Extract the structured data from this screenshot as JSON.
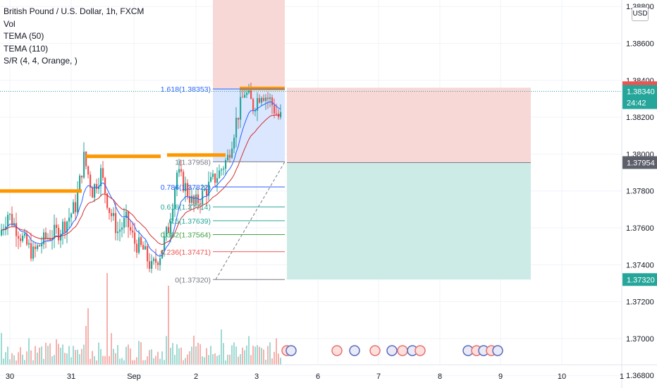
{
  "legend": {
    "symbol": "British Pound / U.S. Dollar, 1h, FXCM",
    "indicators": [
      "Vol",
      "TEMA (50)",
      "TEMA (110)",
      "S/R (4, 4, Orange, )"
    ]
  },
  "currency": "USD",
  "colors": {
    "up": "#26a69a",
    "down": "#ef5350",
    "tema50": "#2962ff",
    "tema110": "#d32f2f",
    "sr": "#ff9800",
    "short_stop_zone": "#f8d7d7",
    "short_target_zone": "#cdebe6",
    "fib_extension_zone": "#dbe6ff",
    "price_red": "#ef5350",
    "price_green": "#26a69a",
    "price_gray": "#5d606b"
  },
  "chart_data": {
    "type": "candlestick",
    "symbol": "GBPUSD",
    "timeframe": "1h",
    "ylim": [
      1.3676,
      1.3882
    ],
    "y_ticks": [
      "1.38800",
      "1.38600",
      "1.38400",
      "1.38200",
      "1.38000",
      "1.37800",
      "1.37600",
      "1.37400",
      "1.37200",
      "1.37000",
      "1.36800"
    ],
    "x_ticks": [
      "30",
      "31",
      "Sep",
      "2",
      "3",
      "6",
      "7",
      "8",
      "9",
      "10",
      "1"
    ],
    "price_labels": [
      {
        "price": 1.3836,
        "text": "1.38360",
        "style": "red"
      },
      {
        "price": 1.3834,
        "text": "1.38340",
        "sub": "24:42",
        "style": "green"
      },
      {
        "price": 1.37954,
        "text": "1.37954",
        "style": "gray"
      },
      {
        "price": 1.3732,
        "text": "1.37320",
        "style": "green"
      }
    ],
    "fib_levels": [
      {
        "ratio": "1.618",
        "price": 1.38353,
        "label": "1.618(1.38353)"
      },
      {
        "ratio": "1",
        "price": 1.37958,
        "label": "1(1.37958)"
      },
      {
        "ratio": "0.786",
        "price": 1.37822,
        "label": "0.786(1.37822)"
      },
      {
        "ratio": "0.618",
        "price": 1.37714,
        "label": "0.618(1.37714)"
      },
      {
        "ratio": "0.5",
        "price": 1.37639,
        "label": "0.5(1.37639)"
      },
      {
        "ratio": "0.382",
        "price": 1.37564,
        "label": "0.382(1.37564)"
      },
      {
        "ratio": "0.236",
        "price": 1.37471,
        "label": "0.236(1.37471)"
      },
      {
        "ratio": "0",
        "price": 1.3732,
        "label": "0(1.37320)"
      }
    ],
    "position": {
      "entry": 1.37954,
      "stop": 1.3836,
      "target": 1.3732
    },
    "sr_levels": [
      1.378,
      1.37988,
      1.37995,
      1.38356
    ],
    "close": 1.3834,
    "countdown": "24:42"
  }
}
